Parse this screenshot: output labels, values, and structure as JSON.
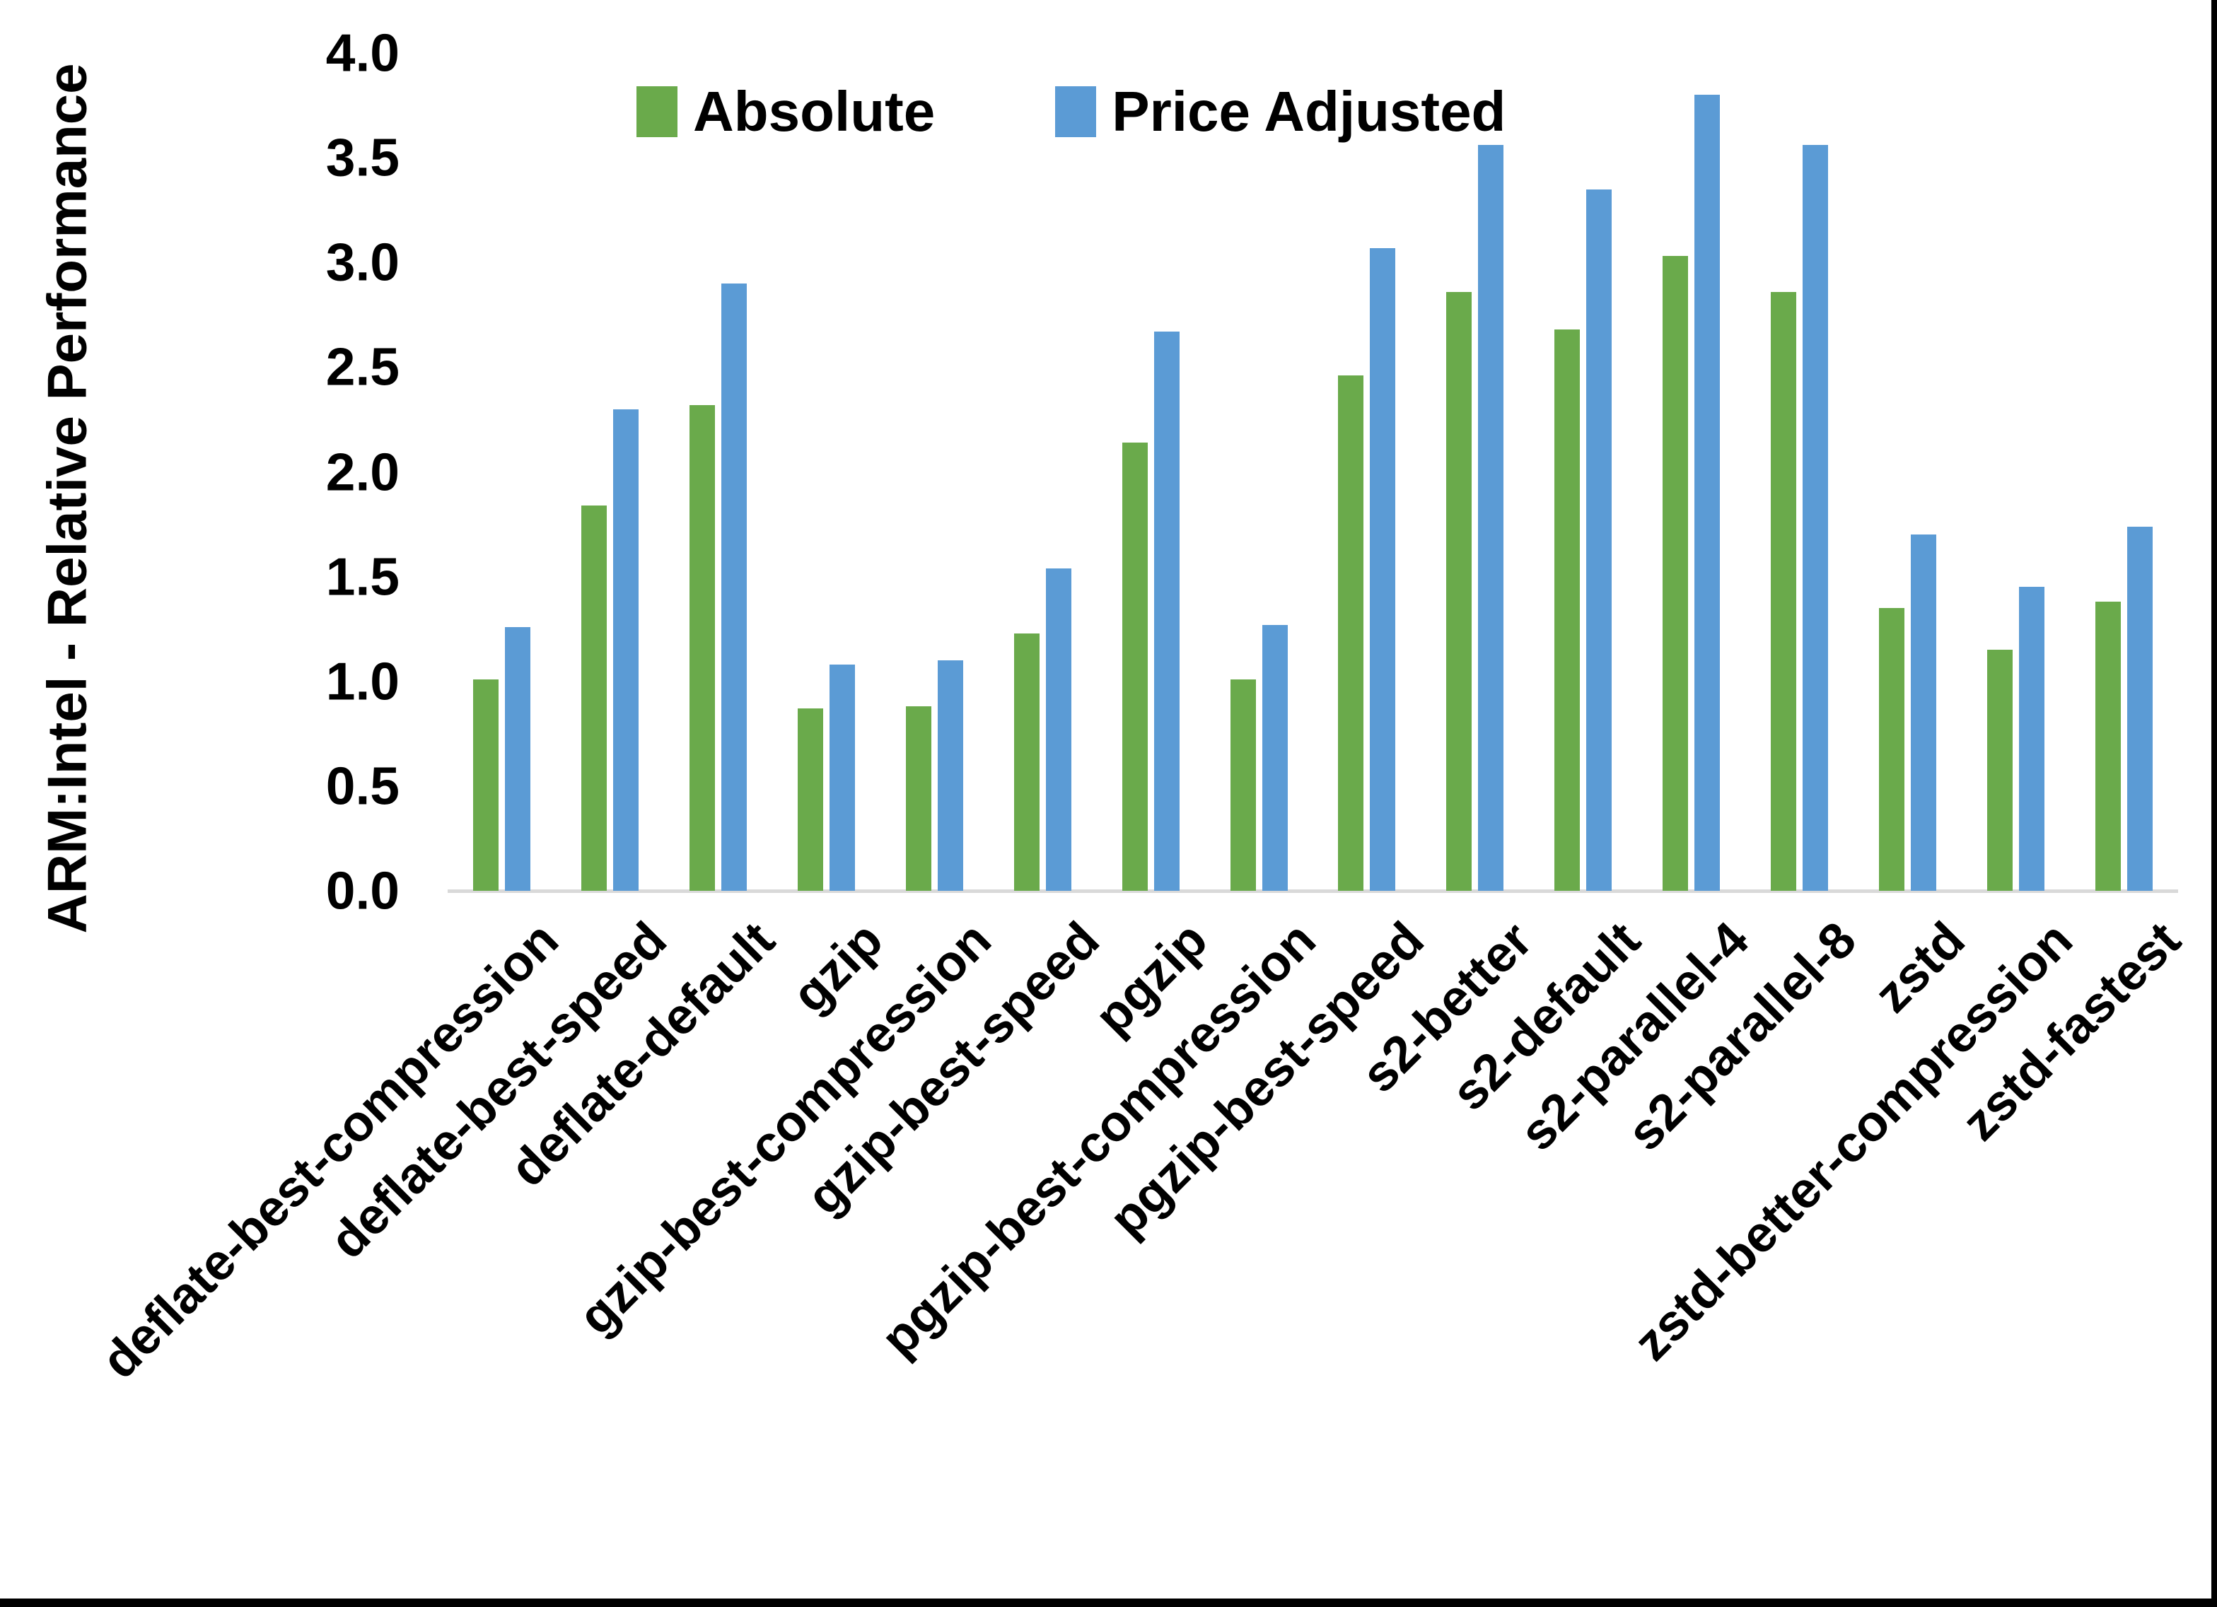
{
  "chart_data": {
    "type": "bar",
    "title": "",
    "ylabel": "ARM:Intel - Relative Performance",
    "xlabel": "",
    "ylim": [
      0.0,
      4.0
    ],
    "ytick_step": 0.5,
    "yticks": [
      "0.0",
      "0.5",
      "1.0",
      "1.5",
      "2.0",
      "2.5",
      "3.0",
      "3.5",
      "4.0"
    ],
    "grid": false,
    "legend_position": "top-center-inside",
    "categories": [
      "deflate-best-compression",
      "deflate-best-speed",
      "deflate-default",
      "gzip",
      "gzip-best-compression",
      "gzip-best-speed",
      "pgzip",
      "pgzip-best-compression",
      "pgzip-best-speed",
      "s2-better",
      "s2-default",
      "s2-parallel-4",
      "s2-parallel-8",
      "zstd",
      "zstd-better-compression",
      "zstd-fastest"
    ],
    "series": [
      {
        "name": "Absolute",
        "color": "#6aaa4b",
        "values": [
          1.01,
          1.84,
          2.32,
          0.87,
          0.88,
          1.23,
          2.14,
          1.01,
          2.46,
          2.86,
          2.68,
          3.03,
          2.86,
          1.35,
          1.15,
          1.38
        ]
      },
      {
        "name": "Price Adjusted",
        "color": "#5b9bd5",
        "values": [
          1.26,
          2.3,
          2.9,
          1.08,
          1.1,
          1.54,
          2.67,
          1.27,
          3.07,
          3.56,
          3.35,
          3.8,
          3.56,
          1.7,
          1.45,
          1.74
        ]
      }
    ]
  },
  "colors": {
    "background": "#ffffff",
    "axis_line": "#d9d9d9",
    "text": "#000000",
    "edge_border": "#000000"
  }
}
